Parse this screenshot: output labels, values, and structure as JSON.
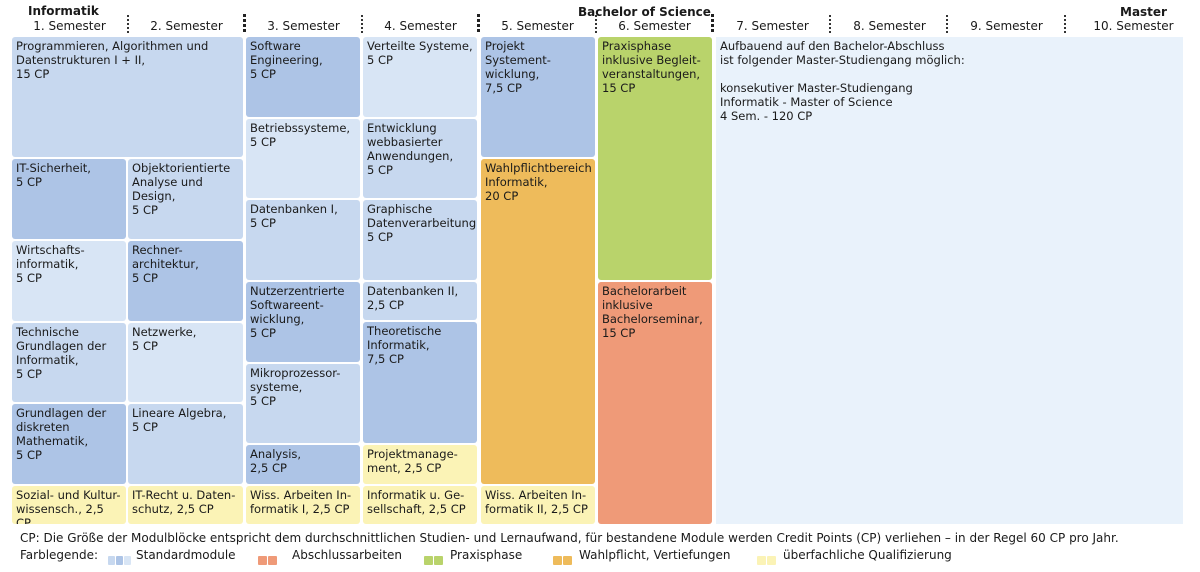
{
  "header": {
    "left": "Informatik",
    "center": "Bachelor of Science",
    "right": "Master"
  },
  "semesters": [
    "1. Semester",
    "2. Semester",
    "3. Semester",
    "4. Semester",
    "5. Semester",
    "6. Semester",
    "7. Semester",
    "8. Semester",
    "9. Semester",
    "10. Semester"
  ],
  "modules": {
    "m1": "Programmieren, Algorithmen und\nDatenstrukturen I + II,\n15 CP",
    "m2": "IT-Sicherheit,\n5 CP",
    "m3": "Objektorientierte\nAnalyse und\nDesign,\n5 CP",
    "m4": "Wirtschafts-\ninformatik,\n5 CP",
    "m5": "Rechner-\narchitektur,\n5 CP",
    "m6": "Technische\nGrundlagen der\nInformatik,\n5 CP",
    "m7": "Netzwerke,\n5 CP",
    "m8": "Grundlagen der\ndiskreten\nMathematik,\n5 CP",
    "m9": "Lineare Algebra,\n5 CP",
    "m10": "Sozial- und Kultur-\nwissensch., 2,5 CP",
    "m11": "IT-Recht u. Daten-\nschutz, 2,5 CP",
    "m12": "Software\nEngineering,\n5 CP",
    "m13": "Betriebssysteme,\n5 CP",
    "m14": "Datenbanken I,\n5 CP",
    "m15": "Nutzerzentrierte\nSoftwareent-\nwicklung,\n5 CP",
    "m16": "Mikroprozessor-\nsysteme,\n5 CP",
    "m17": "Analysis,\n2,5 CP",
    "m18": "Wiss. Arbeiten In-\nformatik I,  2,5 CP",
    "m19": "Verteilte Systeme,\n5 CP",
    "m20": "Entwicklung\nwebbasierter\nAnwendungen,\n5 CP",
    "m21": "Graphische\nDatenverarbeitung,\n5 CP",
    "m22": "Datenbanken II,\n2,5 CP",
    "m23": "Theoretische\nInformatik,\n7,5 CP",
    "m24": "Projektmanage-\nment, 2,5 CP",
    "m25": "Informatik u. Ge-\nsellschaft, 2,5  CP",
    "m26": "Projekt\nSystement-\nwicklung,\n7,5 CP",
    "m27": "Wahlpflichtbereich\nInformatik,\n20 CP",
    "m28": "Wiss. Arbeiten In-\nformatik II, 2,5 CP",
    "m29": "Praxisphase\ninklusive Begleit-\nveranstaltungen,\n15 CP",
    "m30": "Bachelorarbeit\ninklusive\nBachelorseminar,\n15 CP",
    "master": "Aufbauend auf den Bachelor-Abschluss\nist folgender Master-Studiengang möglich:\n\nkonsekutiver Master-Studiengang\nInformatik - Master of Science\n4 Sem. - 120 CP"
  },
  "footer": {
    "note": "CP: Die Größe der Modulblöcke entspricht dem durchschnittlichen Studien- und Lernaufwand, für bestandene Module werden Credit Points (CP) verliehen – in der Regel 60 CP pro Jahr.",
    "legend_label": "Farblegende:",
    "legend": [
      {
        "label": "Standardmodule",
        "colors": [
          "#c7d8ef",
          "#adc4e6",
          "#d8e5f5"
        ]
      },
      {
        "label": "Abschlussarbeiten",
        "colors": [
          "#ef9a78",
          "#ef9a78"
        ]
      },
      {
        "label": "Praxisphase",
        "colors": [
          "#b9d36b",
          "#b9d36b"
        ]
      },
      {
        "label": "Wahlpflicht, Vertiefungen",
        "colors": [
          "#eebb5b",
          "#eebb5b"
        ]
      },
      {
        "label": "überfachliche Qualifizierung",
        "colors": [
          "#fbf3b6",
          "#fbf3b6"
        ]
      }
    ]
  }
}
